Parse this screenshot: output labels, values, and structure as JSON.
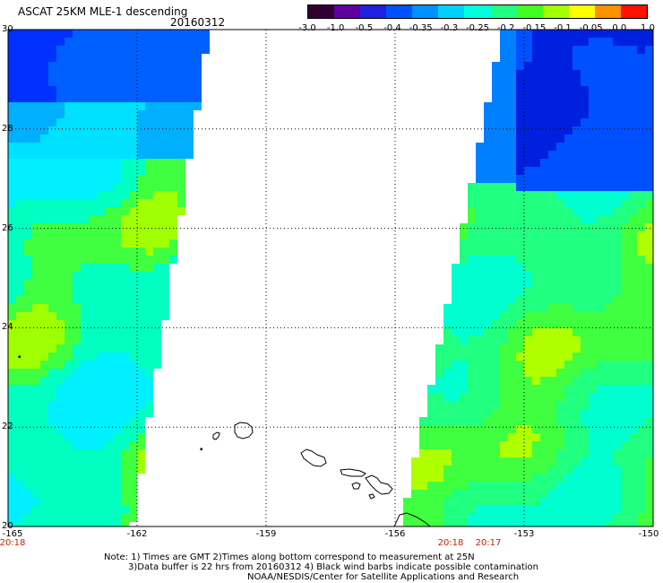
{
  "header": {
    "title": "ASCAT 25KM MLE-1 descending",
    "date": "20160312"
  },
  "colorbar": {
    "labels": [
      "-3.0",
      "-1.0",
      "-0.5",
      "-0.4",
      "-0.35",
      "-0.3",
      "-0.25",
      "-0.2",
      "-0.15",
      "-0.1",
      "-0.05",
      "0.0",
      "1.0"
    ],
    "colors": [
      "#300030",
      "#6000a0",
      "#2020e0",
      "#0050ff",
      "#0090ff",
      "#00d0ff",
      "#00ffe0",
      "#20ff80",
      "#40ff20",
      "#a0ff00",
      "#ffff00",
      "#ff9000",
      "#ff1000"
    ]
  },
  "map": {
    "lat_labels": [
      "30",
      "28",
      "26",
      "24",
      "22",
      "20"
    ],
    "lon_labels": [
      "-165",
      "-162",
      "-159",
      "-156",
      "-153",
      "-150"
    ],
    "time_labels": [
      "20:18",
      "20:18",
      "20:17"
    ],
    "lat_range": [
      20,
      30
    ],
    "lon_range": [
      -165,
      -150
    ],
    "islands": [
      "Kauai",
      "Niihau",
      "Oahu",
      "Molokai",
      "Lanai",
      "Maui",
      "Kahoolawe",
      "Hawaii"
    ]
  },
  "notes": {
    "line1": "Note: 1) Times are GMT 2)Times along bottom correspond to measurement at 25N",
    "line2": "3)Data buffer is 22 hrs from 20160312 4) Black wind barbs indicate possible contamination",
    "line3": "NOAA/NESDIS/Center for Satellite Applications and Research"
  }
}
